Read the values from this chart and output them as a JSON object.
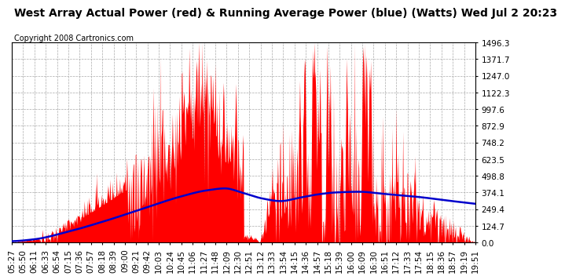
{
  "title": "West Array Actual Power (red) & Running Average Power (blue) (Watts) Wed Jul 2 20:23",
  "copyright": "Copyright 2008 Cartronics.com",
  "ytick_vals": [
    0.0,
    124.7,
    249.4,
    374.1,
    498.8,
    623.5,
    748.2,
    872.9,
    997.6,
    1122.3,
    1247.0,
    1371.7,
    1496.3
  ],
  "ytick_labels": [
    "0.0",
    "124.7",
    "249.4",
    "374.1",
    "498.8",
    "623.5",
    "748.2",
    "872.9",
    "997.6",
    "1122.3",
    "1247.0",
    "1371.7",
    "1496.3"
  ],
  "ymax": 1496.3,
  "ymin": 0.0,
  "fill_color": "#ff0000",
  "line_color": "#0000cc",
  "bg_color": "#ffffff",
  "grid_color": "#aaaaaa",
  "title_fontsize": 10,
  "copy_fontsize": 7,
  "tick_fontsize": 7.5,
  "xtick_labels": [
    "05:27",
    "05:50",
    "06:11",
    "06:33",
    "06:54",
    "07:15",
    "07:36",
    "07:57",
    "08:18",
    "08:39",
    "09:00",
    "09:21",
    "09:42",
    "10:03",
    "10:24",
    "10:45",
    "11:06",
    "11:27",
    "11:48",
    "12:09",
    "12:30",
    "12:51",
    "13:12",
    "13:33",
    "13:54",
    "14:15",
    "14:36",
    "14:57",
    "15:18",
    "15:39",
    "16:00",
    "16:09",
    "16:30",
    "16:51",
    "17:12",
    "17:33",
    "17:54",
    "18:15",
    "18:36",
    "18:57",
    "19:19",
    "19:51"
  ],
  "blue_avg_keypoints_x": [
    0.0,
    0.05,
    0.12,
    0.2,
    0.28,
    0.36,
    0.42,
    0.46,
    0.5,
    0.54,
    0.58,
    0.62,
    0.66,
    0.7,
    0.75,
    0.8,
    0.88,
    0.95,
    1.0
  ],
  "blue_avg_keypoints_y": [
    10,
    25,
    80,
    160,
    250,
    340,
    390,
    405,
    370,
    330,
    310,
    335,
    360,
    375,
    380,
    365,
    340,
    310,
    290
  ]
}
